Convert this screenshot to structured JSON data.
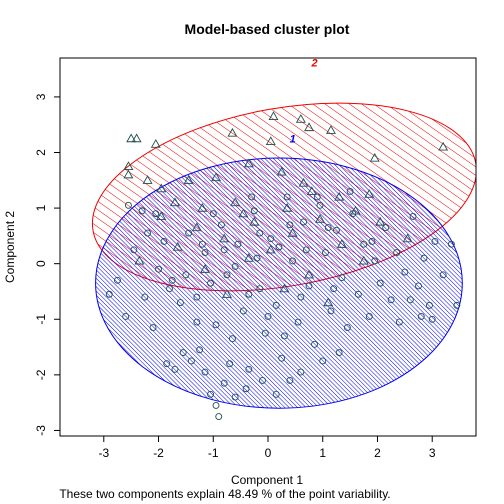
{
  "chart_data": {
    "type": "scatter",
    "title": "Model-based cluster plot",
    "xlabel": "Component 1",
    "ylabel": "Component 2",
    "subtitle": "These two components explain 48.49 % of the point variability.",
    "xlim": [
      -3.8,
      3.8
    ],
    "ylim": [
      -3.1,
      3.7
    ],
    "xticks": [
      -3,
      -2,
      -1,
      0,
      1,
      2,
      3
    ],
    "yticks": [
      -3,
      -2,
      -1,
      0,
      1,
      2,
      3
    ],
    "grid": false,
    "colors": {
      "cluster1": "#0000ee",
      "cluster2": "#ee0000",
      "points": "#1f4d4d"
    },
    "clusters": [
      {
        "label": "1",
        "color": "#0000ee",
        "center": [
          0.2,
          -0.35
        ],
        "semi_axes": [
          3.35,
          2.25
        ],
        "angle_deg": 0
      },
      {
        "label": "2",
        "color": "#ee0000",
        "center": [
          0.3,
          1.2
        ],
        "semi_axes": [
          3.55,
          1.6
        ],
        "angle_deg": 10
      }
    ],
    "series": [
      {
        "cluster": "2",
        "marker": "triangle",
        "points": [
          [
            0.6,
            2.6
          ],
          [
            0.75,
            2.45
          ],
          [
            1.15,
            2.4
          ],
          [
            0.05,
            2.2
          ],
          [
            -0.65,
            2.35
          ],
          [
            0.1,
            2.65
          ],
          [
            -2.4,
            2.25
          ],
          [
            -2.5,
            2.25
          ],
          [
            -2.05,
            2.15
          ],
          [
            -2.55,
            1.75
          ],
          [
            -2.55,
            1.6
          ],
          [
            1.95,
            1.9
          ],
          [
            3.2,
            2.1
          ],
          [
            -2.2,
            1.5
          ],
          [
            -1.95,
            1.35
          ],
          [
            -0.35,
            1.8
          ],
          [
            0.25,
            1.65
          ],
          [
            -0.95,
            1.55
          ],
          [
            0.65,
            1.45
          ],
          [
            -1.45,
            1.5
          ],
          [
            1.3,
            1.2
          ],
          [
            -0.6,
            1.1
          ],
          [
            0.8,
            1.3
          ],
          [
            -1.7,
            1.1
          ],
          [
            1.85,
            1.25
          ],
          [
            -1.2,
            1.0
          ],
          [
            0.35,
            1.0
          ],
          [
            -0.45,
            0.9
          ],
          [
            1.6,
            0.95
          ],
          [
            -1.95,
            0.85
          ],
          [
            0.95,
            0.8
          ],
          [
            -0.25,
            0.75
          ],
          [
            2.05,
            0.75
          ],
          [
            -1.3,
            0.65
          ],
          [
            0.45,
            0.55
          ],
          [
            -0.8,
            0.45
          ],
          [
            1.35,
            0.35
          ],
          [
            2.55,
            0.45
          ],
          [
            -1.65,
            0.3
          ],
          [
            0.05,
            0.25
          ],
          [
            -0.35,
            0.1
          ],
          [
            1.75,
            0.05
          ],
          [
            -1.15,
            -0.1
          ],
          [
            0.75,
            -0.2
          ],
          [
            -2.35,
            0.05
          ],
          [
            0.3,
            -0.45
          ],
          [
            -0.75,
            -0.55
          ],
          [
            1.1,
            -0.7
          ]
        ]
      },
      {
        "cluster": "1",
        "marker": "circle",
        "points": [
          [
            -2.3,
            0.95
          ],
          [
            -2.05,
            0.9
          ],
          [
            -2.55,
            1.05
          ],
          [
            -2.9,
            -0.55
          ],
          [
            -2.75,
            -0.3
          ],
          [
            -2.6,
            -0.95
          ],
          [
            -2.45,
            0.25
          ],
          [
            -2.25,
            -0.6
          ],
          [
            -2.1,
            -1.15
          ],
          [
            -1.9,
            0.4
          ],
          [
            -1.75,
            -0.3
          ],
          [
            -1.6,
            -0.7
          ],
          [
            -1.45,
            0.55
          ],
          [
            -1.3,
            -1.05
          ],
          [
            -1.25,
            -1.55
          ],
          [
            -1.15,
            0.2
          ],
          [
            -1.05,
            -0.35
          ],
          [
            -1.55,
            -1.6
          ],
          [
            -1.4,
            -1.75
          ],
          [
            -0.95,
            -1.1
          ],
          [
            -0.85,
            0.7
          ],
          [
            -0.75,
            -0.2
          ],
          [
            -0.65,
            -1.35
          ],
          [
            -0.55,
            0.35
          ],
          [
            -0.45,
            -0.85
          ],
          [
            -0.35,
            -1.9
          ],
          [
            -0.25,
            0.95
          ],
          [
            -0.15,
            -0.45
          ],
          [
            -0.05,
            -1.25
          ],
          [
            0.05,
            0.45
          ],
          [
            0.15,
            -0.75
          ],
          [
            0.25,
            -1.7
          ],
          [
            0.35,
            1.2
          ],
          [
            0.45,
            0.05
          ],
          [
            0.55,
            -1.05
          ],
          [
            0.65,
            0.75
          ],
          [
            0.75,
            -0.4
          ],
          [
            0.85,
            -1.45
          ],
          [
            0.95,
            1.05
          ],
          [
            1.05,
            0.2
          ],
          [
            1.15,
            -0.85
          ],
          [
            1.25,
            0.6
          ],
          [
            1.35,
            -0.25
          ],
          [
            1.45,
            -1.15
          ],
          [
            1.55,
            0.9
          ],
          [
            1.65,
            -0.55
          ],
          [
            1.75,
            0.35
          ],
          [
            1.85,
            -0.95
          ],
          [
            1.95,
            0.05
          ],
          [
            2.05,
            -0.35
          ],
          [
            2.15,
            0.65
          ],
          [
            2.25,
            -0.65
          ],
          [
            2.35,
            0.2
          ],
          [
            2.5,
            -0.15
          ],
          [
            2.65,
            0.85
          ],
          [
            2.75,
            -0.4
          ],
          [
            2.85,
            0.1
          ],
          [
            2.95,
            -0.75
          ],
          [
            3.05,
            0.4
          ],
          [
            3.2,
            -0.2
          ],
          [
            3.35,
            0.35
          ],
          [
            3.45,
            -0.75
          ],
          [
            2.6,
            -0.65
          ],
          [
            2.8,
            -0.95
          ],
          [
            3.0,
            -1.0
          ],
          [
            2.4,
            -1.05
          ],
          [
            -1.05,
            -2.35
          ],
          [
            -0.95,
            -2.55
          ],
          [
            -0.8,
            -2.15
          ],
          [
            -0.6,
            -2.4
          ],
          [
            -0.9,
            -2.75
          ],
          [
            -0.4,
            -2.25
          ],
          [
            -0.1,
            -2.1
          ],
          [
            0.15,
            -2.35
          ],
          [
            0.4,
            -2.1
          ],
          [
            -1.85,
            -1.8
          ],
          [
            -1.7,
            -1.9
          ],
          [
            -1.15,
            -1.95
          ],
          [
            -0.7,
            -1.8
          ],
          [
            0.6,
            -1.95
          ],
          [
            1.0,
            -1.75
          ],
          [
            1.3,
            -1.6
          ],
          [
            -2.0,
            -0.1
          ],
          [
            -2.2,
            0.55
          ],
          [
            -1.0,
            0.9
          ],
          [
            -0.3,
            1.2
          ],
          [
            0.9,
            1.2
          ],
          [
            1.5,
            1.3
          ],
          [
            -1.8,
            -0.45
          ],
          [
            -0.2,
            0.1
          ],
          [
            0.2,
            0.3
          ],
          [
            -0.6,
            -0.05
          ],
          [
            0.6,
            -0.6
          ],
          [
            -1.2,
            0.35
          ],
          [
            1.1,
            0.65
          ],
          [
            -0.35,
            -0.55
          ],
          [
            0.0,
            -0.95
          ],
          [
            0.4,
            0.7
          ],
          [
            -0.8,
            0.25
          ],
          [
            1.2,
            -0.45
          ],
          [
            -1.5,
            -0.2
          ],
          [
            0.7,
            0.25
          ],
          [
            -0.15,
            0.55
          ],
          [
            1.9,
            0.4
          ],
          [
            -1.3,
            -0.6
          ],
          [
            0.3,
            -1.3
          ]
        ]
      }
    ]
  }
}
